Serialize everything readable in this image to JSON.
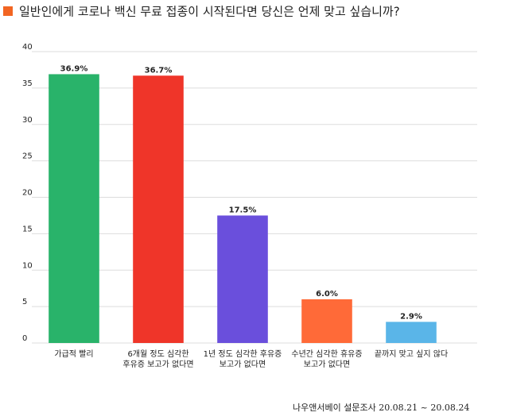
{
  "chart_data": {
    "type": "bar",
    "title": "일반인에게 코로나 백신 무료 접종이 시작된다면 당신은 언제 맞고 싶습니까?",
    "categories": [
      "가급적 빨리",
      "6개월 정도 심각한\n후유증 보고가 없다면",
      "1년 정도 심각한 후유증\n보고가 없다면",
      "수년간 심각한 휴유증\n보고가 없다면",
      "끝까지 맞고 싶지 않다"
    ],
    "values": [
      36.9,
      36.7,
      17.5,
      6.0,
      2.9
    ],
    "value_labels": [
      "36.9%",
      "36.7%",
      "17.5%",
      "6.0%",
      "2.9%"
    ],
    "colors": [
      "#29b36a",
      "#ef3529",
      "#6a4fdc",
      "#ff6a38",
      "#5ab5e8"
    ],
    "ylim": [
      0,
      40
    ],
    "yticks": [
      0,
      5,
      10,
      15,
      20,
      25,
      30,
      35,
      40
    ],
    "grid": true,
    "source": "나우앤서베이 설문조사 20.08.21 ~ 20.08.24"
  }
}
